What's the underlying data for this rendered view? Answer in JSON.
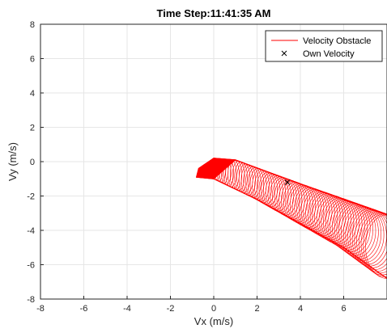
{
  "chart_data": {
    "type": "line",
    "title": "Time Step:11:41:35 AM",
    "xlabel": "Vx (m/s)",
    "ylabel": "Vy (m/s)",
    "xlim": [
      -8,
      8
    ],
    "ylim": [
      -8,
      8
    ],
    "xticks": [
      -8,
      -6,
      -4,
      -2,
      0,
      2,
      4,
      6
    ],
    "yticks": [
      -8,
      -6,
      -4,
      -2,
      0,
      2,
      4,
      6,
      8
    ],
    "grid": true,
    "legend": {
      "placement": "top-right",
      "entries": [
        {
          "label": "Velocity Obstacle",
          "marker": "line",
          "color": "#ff0000"
        },
        {
          "label": "Own Velocity",
          "marker": "x",
          "color": "#000000"
        }
      ]
    },
    "series": [
      {
        "name": "Velocity Obstacle",
        "color": "#ff0000",
        "upper_boundary": [
          [
            -0.7,
            -0.4
          ],
          [
            0.0,
            0.2
          ],
          [
            1.0,
            0.1
          ],
          [
            4.0,
            -1.3
          ],
          [
            6.0,
            -2.2
          ],
          [
            8.0,
            -3.1
          ]
        ],
        "lower_boundary": [
          [
            -0.8,
            -0.9
          ],
          [
            0.0,
            -1.0
          ],
          [
            2.0,
            -2.2
          ],
          [
            4.0,
            -3.6
          ],
          [
            6.0,
            -5.0
          ],
          [
            8.0,
            -6.8
          ]
        ],
        "circle_centers": [
          [
            0.0,
            -0.3
          ],
          [
            8.0,
            -4.3
          ]
        ],
        "circle_radii": [
          0.3,
          1.8
        ]
      }
    ],
    "own_velocity": {
      "name": "Own Velocity",
      "x": 3.4,
      "y": -1.2
    }
  }
}
